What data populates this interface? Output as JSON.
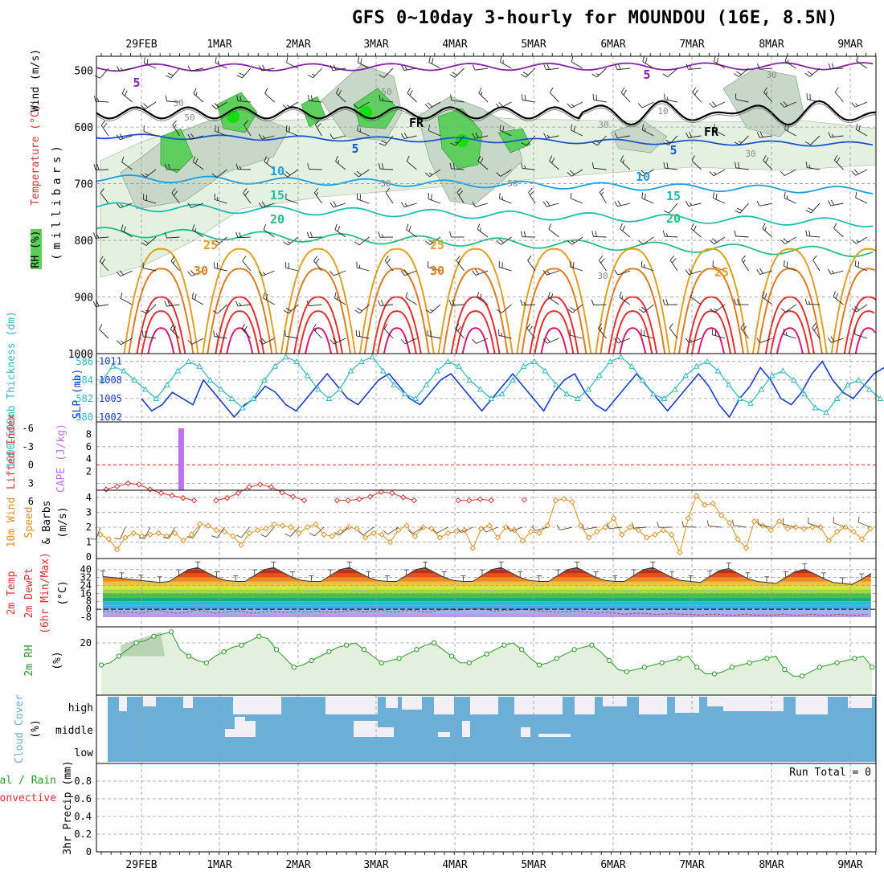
{
  "title": "GFS 0~10day 3-hourly for MOUNDOU (16E, 8.5N)",
  "date_labels": [
    "29FEB",
    "1MAR",
    "2MAR",
    "3MAR",
    "4MAR",
    "5MAR",
    "6MAR",
    "7MAR",
    "8MAR",
    "9MAR"
  ],
  "colors": {
    "rh_light": "#e4f1e1",
    "rh_mid": "#c8d8c8",
    "rh_dark": "#a8bca8",
    "rh_green": "#5ccf5c",
    "rh_bright": "#11dd11",
    "temp_m5": "#8822aa",
    "temp_5": "#1a55d0",
    "temp_10": "#1aa0e0",
    "temp_15": "#1bbfb0",
    "temp_20": "#20c080",
    "temp_25": "#e0a020",
    "temp_30": "#e07a20",
    "temp_35": "#e03030",
    "temp_40": "#d81a70",
    "slp": "#1a3ec8",
    "thickness": "#30b8c0",
    "lifted": "#e03030",
    "cape": "#c070f0",
    "wind10m": "#e09020",
    "dewpt_line": "#a06060",
    "rh2m": "#2a9a2a",
    "rh2m_fill": "#e2f0dc",
    "cloud": "#6baed6",
    "cloud_gap": "#f3eff6"
  },
  "panels": {
    "upper": {
      "label_rh": "RH (%)",
      "label_temp": "Temperature (°C)",
      "label_wind": "Wind (m/s)",
      "label_units": "(millibars)",
      "y_ticks": [
        "500",
        "600",
        "700",
        "800",
        "900",
        "1000"
      ],
      "contour_labels": [
        "5",
        "5",
        "5",
        "5",
        "10",
        "10",
        "15",
        "15",
        "20",
        "20",
        "25",
        "25",
        "25",
        "30",
        "30",
        "FR",
        "FR",
        "30",
        "50",
        "50",
        "30",
        "30",
        "50",
        "10",
        "30",
        "30",
        "30"
      ]
    },
    "thickness": {
      "label_thk": "1000-500mb Thickness (dm)",
      "label_slp": "SLP (mb)",
      "left_ticks": [
        "586",
        "584",
        "582",
        "580"
      ],
      "right_ticks": [
        "1011",
        "1008",
        "1005",
        "1002"
      ]
    },
    "stability": {
      "label_li": "Lifted Index",
      "label_cape": "CAPE (J/kg)",
      "left_ticks": [
        "-6",
        "-3",
        "0",
        "3",
        "6"
      ],
      "right_ticks": [
        "8",
        "6",
        "4",
        "2"
      ]
    },
    "wind10": {
      "label_a": "10m Wind",
      "label_b": "Speed",
      "label_c": "& Barbs",
      "label_units": "(m/s)",
      "y_ticks": [
        "4",
        "3",
        "2",
        "1",
        "0"
      ]
    },
    "temp2m": {
      "label_a": "2m Temp",
      "label_b": "2m DewPt",
      "label_c": "(6hr Min/Max)",
      "label_units": "(°C)",
      "y_ticks": [
        "40",
        "32",
        "24",
        "16",
        "8",
        "0",
        "-8"
      ]
    },
    "rh2m": {
      "label_a": "2m RH",
      "label_units": "(%)",
      "y_ticks": [
        "20"
      ]
    },
    "cloud": {
      "label_a": "Cloud Cover",
      "label_units": "(%)",
      "levels": [
        "high",
        "middle",
        "low"
      ]
    },
    "precip": {
      "label_a": "Total / Rain",
      "label_b": "Convective",
      "label_c": "3hr Precip (mm)",
      "y_ticks": [
        "0.8",
        "0.6",
        "0.4",
        "0.2",
        "0"
      ],
      "run_total": "Run Total = 0"
    }
  },
  "chart_data": {
    "type": "line",
    "title": "GFS 0~10day 3-hourly for MOUNDOU (16E, 8.5N)",
    "x_axis": "3-hourly forecast time, 29FEB to 9MAR",
    "series": [
      {
        "name": "SLP (mb)",
        "values": [
          1005,
          1003,
          1004,
          1006,
          1005,
          1004,
          1008,
          1006,
          1004,
          1002,
          1004,
          1005,
          1007,
          1006,
          1004,
          1003,
          1005,
          1007,
          1009,
          1007,
          1005,
          1004,
          1006,
          1008,
          1009,
          1007,
          1005,
          1004,
          1006,
          1008,
          1009,
          1007,
          1005,
          1003,
          1005,
          1007,
          1009,
          1007,
          1005,
          1003,
          1006,
          1008,
          1009,
          1006,
          1004,
          1003,
          1005,
          1007,
          1009,
          1007,
          1005,
          1003,
          1005,
          1007,
          1009,
          1007,
          1004,
          1002,
          1005,
          1007,
          1010,
          1008,
          1005,
          1004,
          1006,
          1009,
          1011,
          1008,
          1006,
          1005,
          1007,
          1009,
          1010
        ]
      },
      {
        "name": "1000-500mb Thickness (dm)",
        "values": [
          584,
          585.5,
          585,
          584,
          583,
          582,
          583.5,
          585,
          586,
          585.5,
          584,
          583,
          582,
          581,
          582,
          584,
          585.5,
          586.5,
          586,
          584.5,
          583,
          582,
          583,
          585,
          586,
          586.5,
          585,
          583.5,
          582.5,
          582,
          583.5,
          585,
          586,
          585.5,
          584,
          583,
          582,
          582.5,
          584,
          585.5,
          586,
          585,
          583.5,
          582.5,
          582,
          583,
          584.5,
          586,
          586.5,
          585.5,
          584,
          582.5,
          582,
          583,
          584.5,
          585.5,
          586,
          585,
          583.5,
          582,
          581.5,
          583,
          584.5,
          585,
          584,
          582.5,
          581,
          580.5,
          582,
          583.5,
          584,
          583,
          582
        ]
      },
      {
        "name": "Lifted Index",
        "values": [
          4,
          3.5,
          3,
          3.2,
          4,
          4.6,
          5,
          5.4,
          5.8,
          6,
          5.8,
          5.4,
          4.6,
          3.6,
          3.2,
          3.6,
          4.5,
          5.2,
          5.8,
          6,
          6,
          5.8,
          5.8,
          5.6,
          5.2,
          4.4,
          4.6,
          5.3,
          5.8,
          6,
          6,
          6,
          5.8,
          5.8,
          5.6,
          5.8,
          6,
          6,
          5.7,
          5.8,
          6,
          6,
          6,
          6,
          6,
          6,
          5.2,
          5.2,
          5.8,
          5.8,
          6,
          6,
          6,
          6,
          6,
          5.3,
          6,
          6,
          6,
          4.8,
          3.5,
          3.3,
          4.5,
          6
        ]
      },
      {
        "name": "CAPE (J/kg)",
        "values": [
          0,
          0,
          0,
          0,
          0,
          0,
          0,
          0,
          0,
          0,
          0,
          0,
          9,
          0,
          0,
          0,
          0,
          0,
          0,
          0,
          0,
          0,
          0,
          0,
          0,
          0,
          0,
          0,
          0,
          0,
          0,
          0,
          0,
          0,
          0,
          0,
          0,
          0,
          0,
          0,
          0,
          0,
          0,
          0,
          0,
          0,
          0,
          0,
          0,
          0,
          0,
          0,
          0,
          0,
          0,
          0,
          0,
          0,
          0,
          0,
          0,
          0,
          0,
          0,
          0,
          0,
          0,
          0,
          0,
          0,
          0,
          0,
          0,
          0
        ]
      },
      {
        "name": "10m Wind Speed (m/s)",
        "values": [
          1.5,
          1.2,
          0.5,
          1.3,
          1.6,
          1.4,
          1.5,
          1.6,
          1.4,
          1.6,
          1.1,
          1.5,
          2.2,
          2.1,
          1.8,
          1.7,
          1.4,
          0.8,
          1.6,
          1.8,
          1.9,
          2.2,
          2.1,
          2.0,
          1.6,
          2.0,
          2.2,
          1.5,
          1.4,
          1.7,
          2.0,
          1.9,
          1.3,
          1.6,
          1.5,
          1.0,
          1.8,
          2.1,
          1.4,
          2.0,
          1.9,
          1.3,
          1.6,
          1.7,
          1.8,
          0.6,
          1.9,
          2.1,
          1.3,
          2.0,
          1.8,
          1.1,
          1.7,
          1.6,
          2.1,
          3.8,
          3.9,
          3.7,
          2.1,
          1.3,
          1.7,
          2.0,
          2.6,
          1.5,
          2.0,
          1.8,
          1.3,
          1.5,
          1.8,
          1.5,
          0.3,
          2.6,
          4.1,
          3.5,
          3.6,
          2.8,
          2.3,
          1.2,
          0.6,
          2.4,
          2.1,
          1.8,
          2.4,
          1.9,
          2.0,
          1.9,
          2.0,
          2.0,
          1.1,
          1.7,
          2.0,
          1.7,
          1.2,
          1.9
        ]
      },
      {
        "name": "2m Temp (°C)",
        "values": [
          33,
          32,
          31,
          30,
          29,
          28,
          27,
          28,
          34,
          40,
          42,
          37,
          32,
          29,
          28,
          28,
          34,
          40,
          42,
          37,
          32,
          29,
          28,
          28,
          34,
          40,
          42,
          37,
          32,
          29,
          28,
          28,
          34,
          40,
          42,
          37,
          32,
          29,
          28,
          28,
          34,
          40,
          42,
          37,
          32,
          29,
          28,
          28,
          34,
          40,
          42,
          37,
          32,
          29,
          28,
          28,
          34,
          40,
          42,
          37,
          32,
          29,
          28,
          27,
          33,
          39,
          41,
          36,
          31,
          28,
          27,
          26,
          32,
          38,
          40,
          36,
          31,
          27,
          26,
          25,
          30,
          36,
          38,
          34,
          30,
          27,
          26,
          25
        ]
      },
      {
        "name": "2m DewPt (°C)",
        "values": [
          -2,
          -2,
          -3,
          -3,
          -4,
          -2,
          -1,
          -3,
          -4,
          -3,
          -1,
          -2,
          -4,
          -3,
          -2,
          -2,
          -4,
          -3,
          -2,
          -3,
          -3,
          -2,
          -3,
          -2,
          -3,
          -3,
          -2,
          -1,
          -3,
          -2,
          -1,
          -3,
          -2,
          -1,
          -2,
          -3,
          -1,
          0,
          -1,
          0,
          1,
          0,
          -2,
          -1,
          -1,
          0,
          -1,
          -2,
          -2,
          -3,
          -2,
          -2,
          -3,
          -4,
          -3,
          -4,
          -5,
          -4,
          -4,
          -5,
          -5,
          -4,
          -5,
          -5,
          -6,
          -5,
          -5,
          -6,
          -6,
          -5,
          -6,
          -6,
          -6,
          -5,
          -6,
          -6,
          -5,
          -6,
          -6,
          -5,
          -6,
          -6,
          -5,
          -6,
          -5
        ]
      },
      {
        "name": "2m RH (%)",
        "values": [
          10,
          11,
          14,
          17,
          20,
          21,
          23,
          24,
          25,
          17,
          14,
          12,
          11,
          14,
          16,
          18,
          19,
          21,
          23,
          22,
          17,
          13,
          9,
          10,
          12,
          14,
          16,
          18,
          19,
          20,
          17,
          14,
          11,
          12,
          13,
          15,
          17,
          19,
          20,
          17,
          14,
          11,
          11,
          13,
          15,
          17,
          19,
          20,
          17,
          13,
          10,
          11,
          13,
          15,
          17,
          18,
          19,
          16,
          12,
          8,
          7,
          8,
          9,
          10,
          11,
          12,
          13,
          14,
          9,
          6,
          6,
          7,
          9,
          10,
          11,
          12,
          13,
          14,
          8,
          5,
          5,
          7,
          9,
          10,
          11,
          12,
          13,
          14,
          9,
          6,
          6,
          8,
          10,
          12,
          13,
          14,
          15,
          14
        ]
      },
      {
        "name": "3hr Precip (mm)",
        "values": [
          0,
          0,
          0,
          0,
          0,
          0,
          0,
          0,
          0,
          0,
          0,
          0,
          0,
          0,
          0,
          0,
          0,
          0,
          0,
          0,
          0,
          0,
          0,
          0,
          0,
          0,
          0,
          0,
          0,
          0,
          0,
          0,
          0,
          0,
          0,
          0,
          0,
          0,
          0,
          0,
          0,
          0,
          0,
          0,
          0,
          0,
          0,
          0,
          0,
          0,
          0,
          0,
          0,
          0,
          0,
          0,
          0,
          0,
          0,
          0,
          0,
          0,
          0,
          0,
          0,
          0,
          0,
          0,
          0,
          0,
          0,
          0,
          0,
          0,
          0,
          0,
          0,
          0,
          0,
          0,
          0
        ]
      }
    ]
  }
}
